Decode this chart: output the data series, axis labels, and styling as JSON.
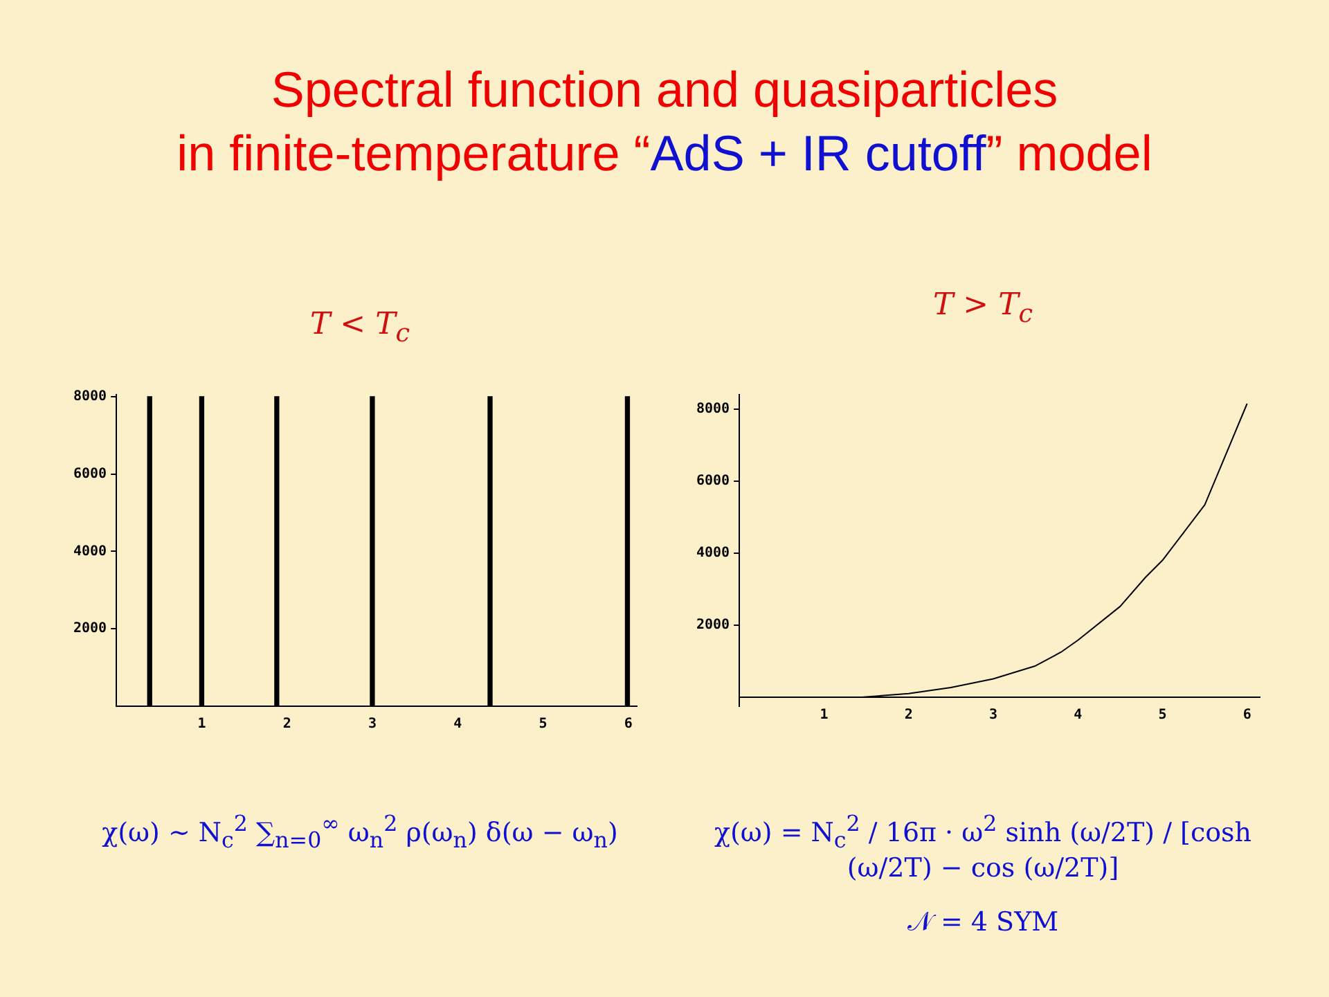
{
  "chart_data": [
    {
      "type": "bar",
      "title": "Spectral function and quasiparticles in finite-temperature “AdS + IR cutoff” model",
      "subtitle": "T < T$_{c}$",
      "x": [
        0.39,
        1.0,
        1.88,
        3.0,
        4.38,
        5.99
      ],
      "series": [
        {
          "color": "#000000",
          "values": [
            8000,
            8000,
            8000,
            8000,
            8000,
            8000
          ]
        }
      ],
      "xlim": [
        0,
        6.1
      ],
      "xticks": [
        1,
        2,
        3,
        4,
        5,
        6
      ],
      "ylim": [
        0,
        8050
      ],
      "yticks": [
        2000,
        4000,
        6000,
        8000
      ],
      "grid": false,
      "legend": false,
      "annotations": [
        "χ(ω) ∼ N$_{c}$$^{2}$ ∑$_{n=0}$$^{∞}$ ω$_{n}$$^{2}$ ρ(ω$_{n}$) δ(ω − ω$_{n}$)"
      ]
    },
    {
      "type": "line",
      "subtitle": "T > T$_{c}$",
      "x": [
        1.45,
        2,
        2.5,
        3,
        3.5,
        3.8,
        4,
        4.5,
        4.8,
        5,
        5.5,
        6
      ],
      "series": [
        {
          "color": "#000000",
          "values": [
            0,
            100,
            270,
            510,
            870,
            1250,
            1580,
            2520,
            3330,
            3800,
            5340,
            8150
          ]
        }
      ],
      "xlim": [
        0,
        6.15
      ],
      "xticks": [
        1,
        2,
        3,
        4,
        5,
        6
      ],
      "ylim": [
        -250,
        8400
      ],
      "yticks": [
        2000,
        4000,
        6000,
        8000
      ],
      "grid": false,
      "legend": false,
      "marker": "none",
      "line_style": "solid",
      "annotations": [
        "χ(ω) = N$_{c}$$^{2}$ / 16π · ω$^{2}$ sinh (ω/2T) / [cosh (ω/2T) − cos (ω/2T)]",
        "𝒩 = 4 SYM"
      ]
    }
  ]
}
